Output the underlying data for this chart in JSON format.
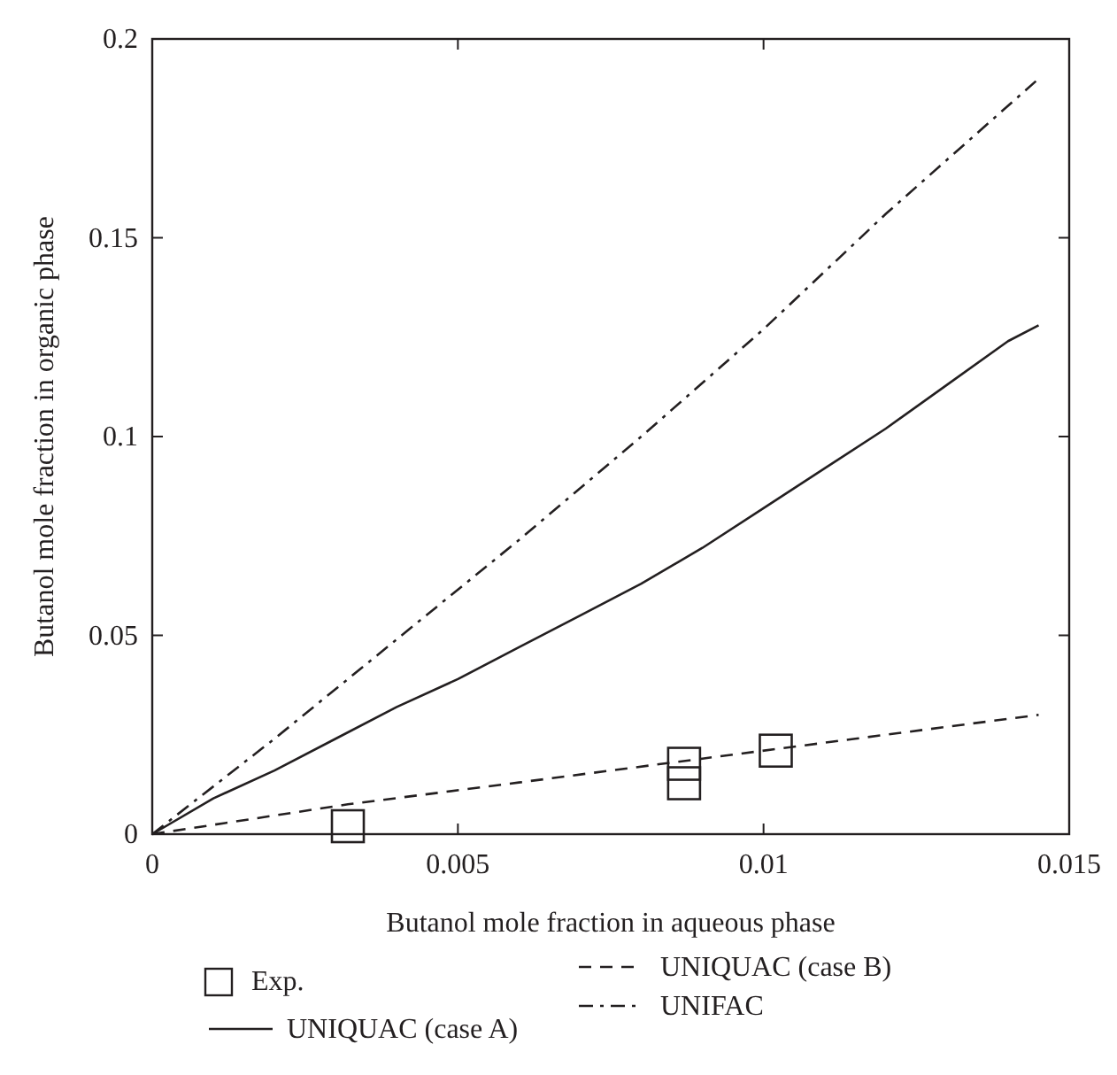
{
  "chart_data": {
    "type": "line",
    "xlabel": "Butanol mole fraction in aqueous phase",
    "ylabel": "Butanol mole fraction in organic phase",
    "xlim": [
      0,
      0.015
    ],
    "xticks": [
      0,
      0.005,
      0.01,
      0.015
    ],
    "ylim": [
      0,
      0.2
    ],
    "yticks": [
      0,
      0.05,
      0.1,
      0.15,
      0.2
    ],
    "grid": false,
    "legend": "bottom",
    "series": [
      {
        "name": "Exp.",
        "type": "scatter",
        "marker": "square",
        "color": "#231f20",
        "x": [
          0.0032,
          0.0087,
          0.0087,
          0.0102
        ],
        "values": [
          0.002,
          0.0177,
          0.0128,
          0.021
        ]
      },
      {
        "name": "UNIQUAC (case A)",
        "type": "line",
        "line_style": "solid",
        "color": "#231f20",
        "x": [
          0,
          0.001,
          0.002,
          0.003,
          0.004,
          0.005,
          0.006,
          0.007,
          0.008,
          0.009,
          0.01,
          0.011,
          0.012,
          0.013,
          0.014,
          0.0145
        ],
        "values": [
          0,
          0.009,
          0.016,
          0.024,
          0.032,
          0.039,
          0.047,
          0.055,
          0.063,
          0.072,
          0.082,
          0.092,
          0.102,
          0.113,
          0.124,
          0.128
        ]
      },
      {
        "name": "UNIQUAC (case B)",
        "type": "line",
        "line_style": "dashed",
        "color": "#231f20",
        "x": [
          0,
          0.0032,
          0.006,
          0.009,
          0.0115,
          0.0145
        ],
        "values": [
          0,
          0.0075,
          0.013,
          0.019,
          0.024,
          0.03
        ]
      },
      {
        "name": "UNIFAC",
        "type": "line",
        "line_style": "dashdot",
        "color": "#231f20",
        "x": [
          0,
          0.002,
          0.004,
          0.006,
          0.008,
          0.01,
          0.012,
          0.0145
        ],
        "values": [
          0,
          0.024,
          0.049,
          0.074,
          0.1,
          0.127,
          0.156,
          0.19
        ]
      }
    ]
  }
}
